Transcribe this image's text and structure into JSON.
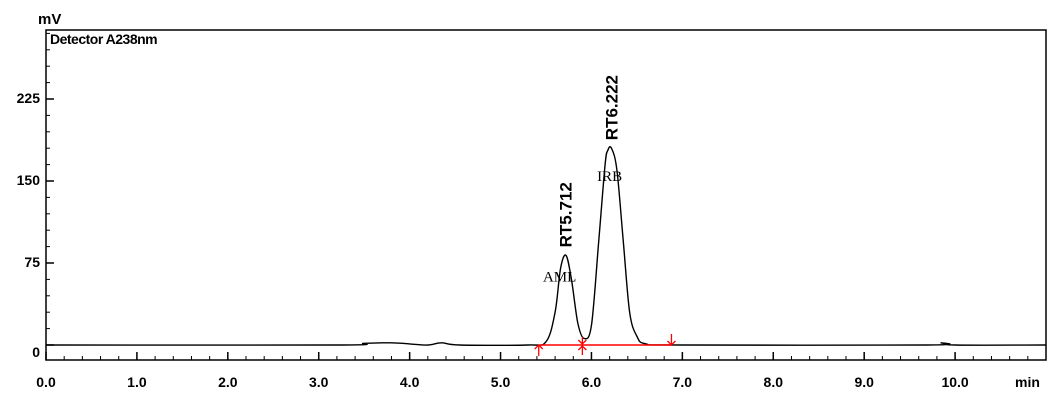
{
  "chart_data": {
    "type": "line",
    "y_unit": "mV",
    "x_unit": "min",
    "detector_label": "Detector A238nm",
    "xlim": [
      0.0,
      11.0
    ],
    "ylim": [
      -8,
      300
    ],
    "x_ticks": [
      0.0,
      1.0,
      2.0,
      3.0,
      4.0,
      5.0,
      6.0,
      7.0,
      8.0,
      9.0,
      10.0
    ],
    "x_tick_labels": [
      "0.0",
      "1.0",
      "2.0",
      "3.0",
      "4.0",
      "5.0",
      "6.0",
      "7.0",
      "8.0",
      "9.0",
      "10.0"
    ],
    "y_ticks": [
      0,
      75,
      150,
      225
    ],
    "y_tick_labels": [
      "0",
      "75",
      "150",
      "225"
    ],
    "series": [
      {
        "x": [
          0.0,
          3.2,
          3.5,
          3.8,
          4.0,
          4.2,
          4.35,
          4.55,
          5.3,
          5.5,
          5.6,
          5.66,
          5.72,
          5.78,
          5.85,
          5.92,
          6.0,
          6.08,
          6.15,
          6.18,
          6.22,
          6.28,
          6.35,
          6.42,
          6.5,
          6.6,
          7.0,
          9.7,
          9.85,
          10.0,
          11.0
        ],
        "y": [
          0,
          0,
          1.5,
          2,
          1,
          0,
          2,
          0,
          0,
          3,
          30,
          70,
          82,
          60,
          20,
          6,
          18,
          95,
          165,
          178,
          180,
          160,
          95,
          30,
          8,
          1,
          0,
          0,
          2,
          0,
          0
        ]
      }
    ],
    "annotations": [
      {
        "text": "RT5.712",
        "x": 5.712,
        "y": 82,
        "style": "rotated-bold"
      },
      {
        "text": "RT6.222",
        "x": 6.222,
        "y": 180,
        "style": "rotated-bold"
      },
      {
        "text": "AML",
        "x": 5.65,
        "y": 58
      },
      {
        "text": "IRB",
        "x": 6.2,
        "y": 150
      }
    ],
    "baseline_markers": [
      {
        "x": 5.42,
        "direction": "up"
      },
      {
        "x": 5.9,
        "direction": "cross"
      },
      {
        "x": 6.88,
        "direction": "down"
      }
    ],
    "baseline_segment": {
      "x_start": 5.42,
      "x_end": 6.88
    },
    "colors": {
      "trace": "#000000",
      "baseline": "#ff0000",
      "axis": "#000000"
    }
  }
}
